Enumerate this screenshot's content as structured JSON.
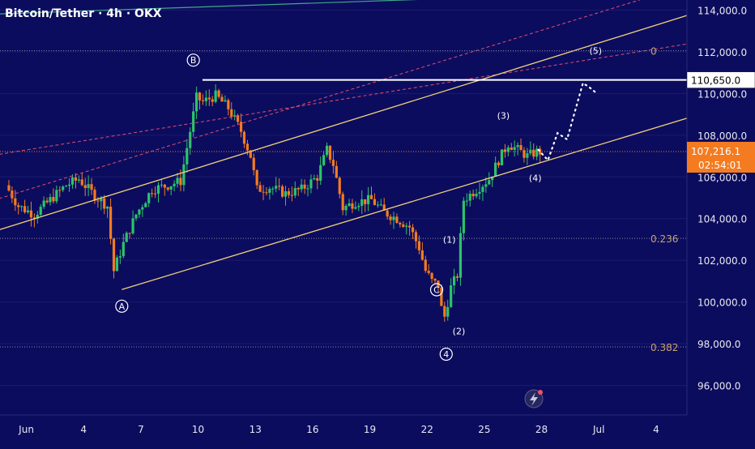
{
  "header": {
    "title": "Bitcoin/Tether · 4h · OKX"
  },
  "chart_data": {
    "type": "candlestick",
    "symbol": "Bitcoin/Tether",
    "interval": "4h",
    "exchange": "OKX",
    "y_range": [
      95400,
      115300
    ],
    "x_range": [
      "2025-05-31",
      "2025-07-06"
    ],
    "y_ticks": [
      "96,000.0",
      "98,000.0",
      "100,000.0",
      "102,000.0",
      "104,000.0",
      "106,000.0",
      "108,000.0",
      "110,000.0",
      "112,000.0",
      "114,000.0"
    ],
    "y_tick_values": [
      96000,
      98000,
      100000,
      102000,
      104000,
      106000,
      108000,
      110000,
      112000,
      114000
    ],
    "x_ticks": [
      {
        "label": "Jun",
        "date": "2025-06-01"
      },
      {
        "label": "4",
        "date": "2025-06-04"
      },
      {
        "label": "7",
        "date": "2025-06-07"
      },
      {
        "label": "10",
        "date": "2025-06-10"
      },
      {
        "label": "13",
        "date": "2025-06-13"
      },
      {
        "label": "16",
        "date": "2025-06-16"
      },
      {
        "label": "19",
        "date": "2025-06-19"
      },
      {
        "label": "22",
        "date": "2025-06-22"
      },
      {
        "label": "25",
        "date": "2025-06-25"
      },
      {
        "label": "28",
        "date": "2025-06-28"
      },
      {
        "label": "Jul",
        "date": "2025-07-01"
      },
      {
        "label": "4",
        "date": "2025-07-04"
      }
    ],
    "price_path": [
      [
        "2025-05-31T00:00",
        105600
      ],
      [
        "2025-05-31T16:00",
        104600
      ],
      [
        "2025-06-01T12:00",
        104200
      ],
      [
        "2025-06-02T08:00",
        104900
      ],
      [
        "2025-06-03T04:00",
        105600
      ],
      [
        "2025-06-03T20:00",
        105900
      ],
      [
        "2025-06-04T16:00",
        105100
      ],
      [
        "2025-06-05T08:00",
        104600
      ],
      [
        "2025-06-05T16:00",
        101500
      ],
      [
        "2025-06-06T04:00",
        102800
      ],
      [
        "2025-06-06T20:00",
        104200
      ],
      [
        "2025-06-07T16:00",
        105400
      ],
      [
        "2025-06-08T12:00",
        105600
      ],
      [
        "2025-06-09T04:00",
        105800
      ],
      [
        "2025-06-09T16:00",
        108200
      ],
      [
        "2025-06-10T00:00",
        109800
      ],
      [
        "2025-06-10T08:00",
        109600
      ],
      [
        "2025-06-11T00:00",
        109900
      ],
      [
        "2025-06-11T16:00",
        109300
      ],
      [
        "2025-06-12T08:00",
        108200
      ],
      [
        "2025-06-12T20:00",
        107000
      ],
      [
        "2025-06-13T04:00",
        105400
      ],
      [
        "2025-06-13T20:00",
        105500
      ],
      [
        "2025-06-14T16:00",
        105200
      ],
      [
        "2025-06-15T12:00",
        105400
      ],
      [
        "2025-06-16T08:00",
        106000
      ],
      [
        "2025-06-16T20:00",
        107300
      ],
      [
        "2025-06-17T04:00",
        106600
      ],
      [
        "2025-06-17T16:00",
        104500
      ],
      [
        "2025-06-18T08:00",
        104800
      ],
      [
        "2025-06-19T04:00",
        104900
      ],
      [
        "2025-06-19T20:00",
        104300
      ],
      [
        "2025-06-20T12:00",
        104000
      ],
      [
        "2025-06-21T04:00",
        103600
      ],
      [
        "2025-06-21T16:00",
        102600
      ],
      [
        "2025-06-22T00:00",
        101500
      ],
      [
        "2025-06-22T08:00",
        101000
      ],
      [
        "2025-06-22T16:00",
        100800
      ],
      [
        "2025-06-22T20:00",
        99700
      ],
      [
        "2025-06-23T00:00",
        99300
      ],
      [
        "2025-06-23T08:00",
        100700
      ],
      [
        "2025-06-23T16:00",
        101300
      ],
      [
        "2025-06-24T00:00",
        104900
      ],
      [
        "2025-06-24T16:00",
        105400
      ],
      [
        "2025-06-25T08:00",
        105900
      ],
      [
        "2025-06-25T20:00",
        106800
      ],
      [
        "2025-06-26T08:00",
        107600
      ],
      [
        "2025-06-26T20:00",
        107300
      ],
      [
        "2025-06-27T08:00",
        107000
      ],
      [
        "2025-06-27T20:00",
        107200
      ]
    ],
    "overlays": {
      "horizontal_levels": [
        {
          "price": 110650,
          "label": "110,650.0",
          "style": "solid-white"
        },
        {
          "price": 112050,
          "label": "0",
          "style": "dotted"
        },
        {
          "price": 103050,
          "label": "0.236",
          "style": "dotted"
        },
        {
          "price": 97850,
          "label": "0.382",
          "style": "dotted"
        },
        {
          "price": 107216.1,
          "label": "107,216.1",
          "style": "dotted-orange"
        }
      ],
      "channel_lines": [
        {
          "from": [
            "2025-05-30T00:00",
            103300
          ],
          "to": [
            "2025-07-06T00:00",
            113850
          ]
        },
        {
          "from": [
            "2025-06-06T00:00",
            100600
          ],
          "to": [
            "2025-07-06T00:00",
            108920
          ]
        }
      ],
      "red_dashed_lines": [
        {
          "from": [
            "2025-05-30T00:00",
            107000
          ],
          "to": [
            "2025-07-06T00:00",
            112430
          ]
        },
        {
          "from": [
            "2025-05-30T00:00",
            104800
          ],
          "to": [
            "2025-07-06T00:00",
            115300
          ]
        }
      ],
      "green_line": {
        "from": [
          "2025-05-30T00:00",
          113800
        ],
        "to": [
          "2025-07-06T00:00",
          114960
        ]
      },
      "wave_labels": [
        {
          "text": "A",
          "date": "2025-06-06T00:00",
          "price": 99800,
          "circled": true
        },
        {
          "text": "B",
          "date": "2025-06-09T18:00",
          "price": 111600,
          "circled": true
        },
        {
          "text": "C",
          "date": "2025-06-22T12:00",
          "price": 100590,
          "circled": true
        },
        {
          "text": "4",
          "date": "2025-06-23T00:00",
          "price": 97500,
          "circled": true
        },
        {
          "text": "(1)",
          "date": "2025-06-23T04:00",
          "price": 103000,
          "circled": false
        },
        {
          "text": "(2)",
          "date": "2025-06-23T16:00",
          "price": 98600,
          "circled": false
        },
        {
          "text": "(3)",
          "date": "2025-06-26T00:00",
          "price": 108950,
          "circled": false
        },
        {
          "text": "(4)",
          "date": "2025-06-27T16:00",
          "price": 105950,
          "circled": false
        },
        {
          "text": "(5)",
          "date": "2025-06-30T20:00",
          "price": 112050,
          "circled": false
        }
      ],
      "projection_path": [
        [
          "2025-06-27T20:00",
          107300
        ],
        [
          "2025-06-28T08:00",
          106800
        ],
        [
          "2025-06-28T20:00",
          108100
        ],
        [
          "2025-06-29T08:00",
          107800
        ],
        [
          "2025-06-30T04:00",
          110500
        ],
        [
          "2025-06-30T12:00",
          110300
        ],
        [
          "2025-06-30T20:00",
          110050
        ]
      ]
    },
    "price_label": {
      "value": "107,216.1",
      "countdown": "02:54:01",
      "color": "#f47b20"
    },
    "level_label_color": "#ffffff"
  }
}
